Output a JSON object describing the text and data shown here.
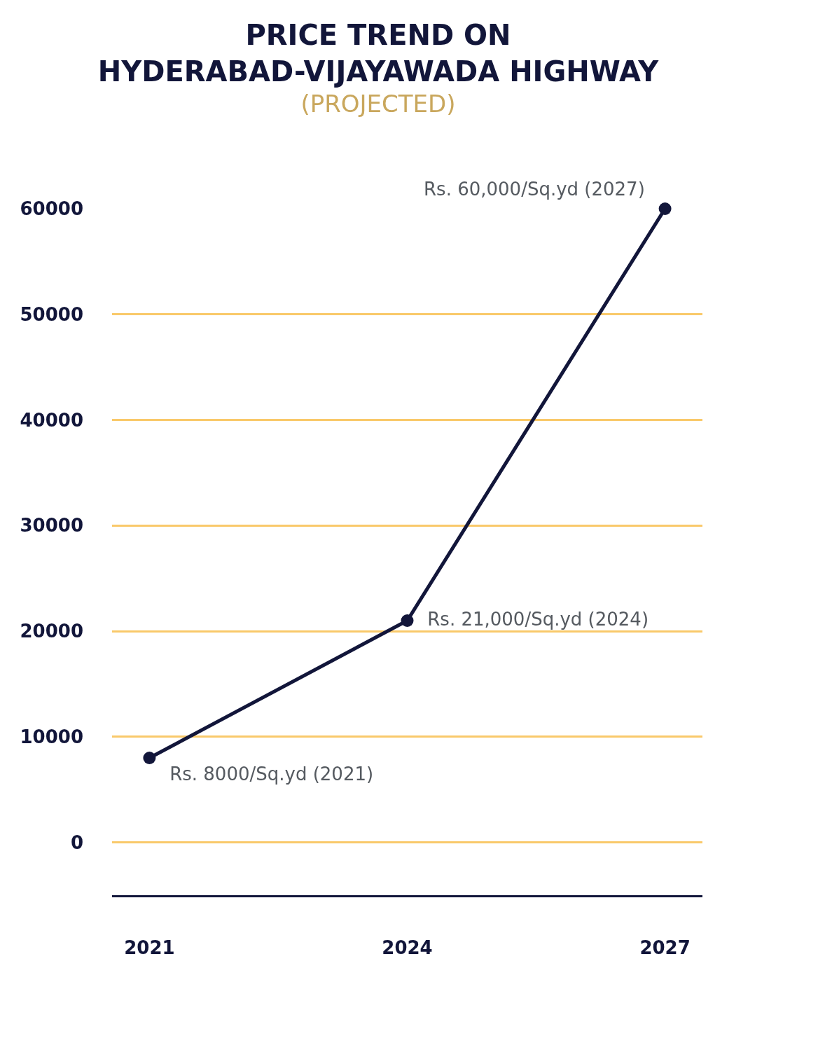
{
  "chart_data": {
    "type": "line",
    "title": "PRICE TREND ON HYDERABAD-VIJAYAWADA HIGHWAY",
    "subtitle": "(PROJECTED)",
    "categories": [
      "2021",
      "2024",
      "2027"
    ],
    "series": [
      {
        "color": "#12163a",
        "values": [
          8000,
          21000,
          60000
        ],
        "value_labels": [
          "Rs. 8000/Sq.yd (2021)",
          "Rs. 21,000/Sq.yd (2024)",
          "Rs. 60,000/Sq.yd (2027)"
        ]
      }
    ],
    "ylim": [
      -5000,
      60000
    ],
    "yticks": [
      0,
      10000,
      20000,
      30000,
      40000,
      50000,
      60000
    ],
    "grid": "y",
    "legend": false,
    "marker": "circle",
    "line_style": "solid"
  }
}
